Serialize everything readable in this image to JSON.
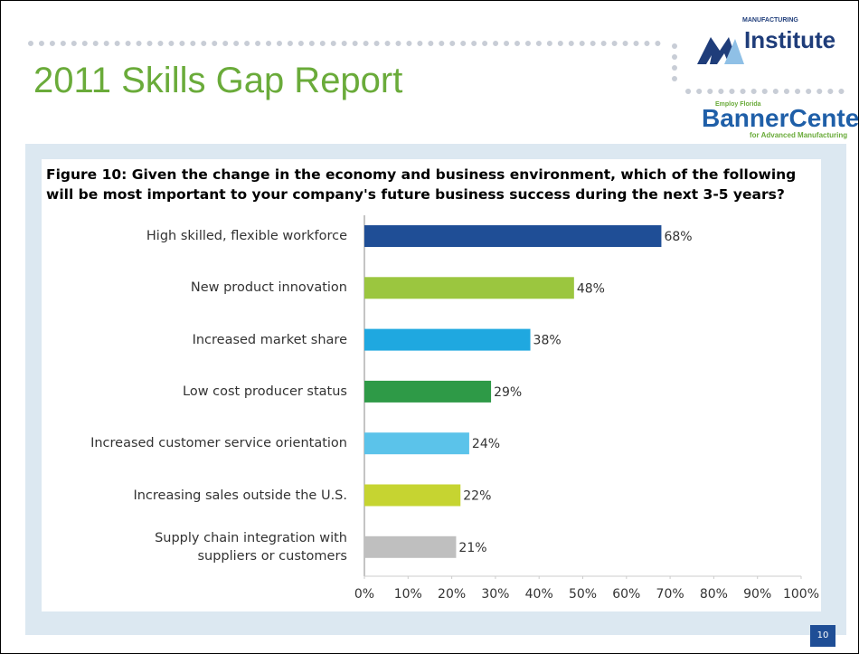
{
  "header": {
    "title": "2011 Skills Gap Report",
    "logo_top_small": "MANUFACTURING",
    "logo_top": "Institute",
    "logo_bottom_small": "Employ Florida",
    "logo_bottom": "BannerCenter",
    "logo_bottom_sub": "for Advanced Manufacturing"
  },
  "page_number": 10,
  "chart_data": {
    "type": "hbar",
    "title": "Figure 10: Given the change in the economy and business environment, which of the following will be most important to your company's future business success during the next 3-5 years?",
    "categories": [
      "High skilled, flexible workforce",
      "New product innovation",
      "Increased market share",
      "Low cost producer status",
      "Increased customer service orientation",
      "Increasing sales outside the U.S.",
      "Supply chain integration with\nsuppliers or customers"
    ],
    "values": [
      68,
      48,
      38,
      29,
      24,
      22,
      21
    ],
    "value_labels": [
      "68%",
      "48%",
      "38%",
      "29%",
      "24%",
      "22%",
      "21%"
    ],
    "colors": [
      "#1f4e96",
      "#9bc63f",
      "#1fa8e0",
      "#2e9a47",
      "#5bc3ea",
      "#c6d431",
      "#bfbfbf"
    ],
    "xlim": [
      0,
      100
    ],
    "xticks": [
      {
        "value": 0,
        "label": "0%"
      },
      {
        "value": 10,
        "label": "10%"
      },
      {
        "value": 20,
        "label": "20%"
      },
      {
        "value": 30,
        "label": "30%"
      },
      {
        "value": 40,
        "label": "40%"
      },
      {
        "value": 50,
        "label": "50%"
      },
      {
        "value": 60,
        "label": "60%"
      },
      {
        "value": 70,
        "label": "70%"
      },
      {
        "value": 80,
        "label": "80%"
      },
      {
        "value": 90,
        "label": "90%"
      },
      {
        "value": 100,
        "label": "100%"
      }
    ],
    "grid": false
  }
}
